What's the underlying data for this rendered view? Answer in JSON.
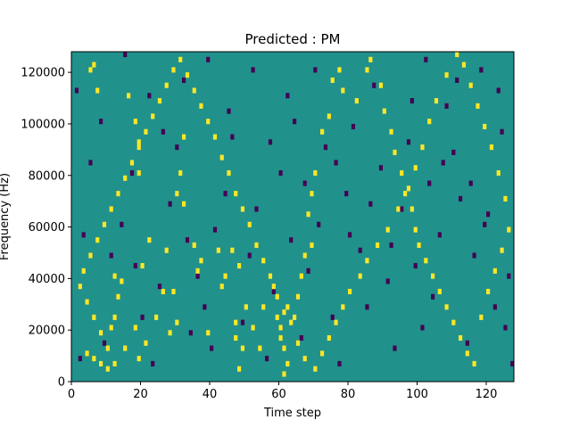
{
  "chart_data": {
    "type": "heatmap",
    "title": "Predicted : PM",
    "xlabel": "Time step",
    "ylabel": "Frequency (Hz)",
    "xlim": [
      0,
      128
    ],
    "ylim": [
      0,
      128000
    ],
    "x_ticks": [
      0,
      20,
      40,
      60,
      80,
      100,
      120
    ],
    "y_ticks": [
      0,
      20000,
      40000,
      60000,
      80000,
      100000,
      120000
    ],
    "x_tick_labels": [
      "0",
      "20",
      "40",
      "60",
      "80",
      "100",
      "120"
    ],
    "y_tick_labels": [
      "0",
      "20000",
      "40000",
      "60000",
      "80000",
      "100000",
      "120000"
    ],
    "n_time_steps": 128,
    "n_freq_bins": 64,
    "freq_bin_hz": 2000,
    "colormap": "viridis",
    "value_levels": [
      -1,
      0,
      1
    ],
    "level_colors": {
      "-1": "#440154",
      "0": "#21918c",
      "1": "#fde725"
    },
    "background_value": 0,
    "grid": false,
    "colorbar": false,
    "positive_cells": [
      [
        4,
        5
      ],
      [
        5,
        60
      ],
      [
        6,
        61
      ],
      [
        7,
        56
      ],
      [
        6,
        4
      ],
      [
        8,
        3
      ],
      [
        10,
        2
      ],
      [
        12,
        20
      ],
      [
        14,
        19
      ],
      [
        13,
        16
      ],
      [
        12,
        12
      ],
      [
        11,
        10
      ],
      [
        15,
        6
      ],
      [
        16,
        55
      ],
      [
        18,
        50
      ],
      [
        19,
        46
      ],
      [
        19,
        40
      ],
      [
        18,
        10
      ],
      [
        19,
        4
      ],
      [
        21,
        7
      ],
      [
        20,
        22
      ],
      [
        24,
        12
      ],
      [
        22,
        27
      ],
      [
        26,
        17
      ],
      [
        28,
        9
      ],
      [
        30,
        11
      ],
      [
        29,
        17
      ],
      [
        27,
        25
      ],
      [
        30,
        36
      ],
      [
        32,
        34
      ],
      [
        31,
        40
      ],
      [
        32,
        47
      ],
      [
        35,
        26
      ],
      [
        37,
        23
      ],
      [
        36,
        21
      ],
      [
        39,
        9
      ],
      [
        43,
        18
      ],
      [
        42,
        25
      ],
      [
        44,
        20
      ],
      [
        46,
        25
      ],
      [
        47,
        11
      ],
      [
        48,
        22
      ],
      [
        47,
        8
      ],
      [
        49,
        6
      ],
      [
        48,
        2
      ],
      [
        50,
        14
      ],
      [
        52,
        10
      ],
      [
        54,
        6
      ],
      [
        55,
        14
      ],
      [
        58,
        18
      ],
      [
        59,
        12
      ],
      [
        60,
        10
      ],
      [
        60,
        8
      ],
      [
        61,
        6
      ],
      [
        62,
        3
      ],
      [
        61,
        1
      ],
      [
        62,
        14
      ],
      [
        64,
        12
      ],
      [
        65,
        16
      ],
      [
        66,
        20
      ],
      [
        67,
        24
      ],
      [
        69,
        26
      ],
      [
        68,
        32
      ],
      [
        69,
        36
      ],
      [
        70,
        40
      ],
      [
        72,
        48
      ],
      [
        74,
        51
      ],
      [
        75,
        58
      ],
      [
        77,
        60
      ],
      [
        78,
        56
      ],
      [
        82,
        54
      ],
      [
        85,
        60
      ],
      [
        86,
        62
      ],
      [
        89,
        57
      ],
      [
        90,
        52
      ],
      [
        92,
        48
      ],
      [
        93,
        44
      ],
      [
        95,
        40
      ],
      [
        96,
        36
      ],
      [
        98,
        33
      ],
      [
        99,
        29
      ],
      [
        100,
        26
      ],
      [
        102,
        23
      ],
      [
        104,
        20
      ],
      [
        106,
        17
      ],
      [
        108,
        14
      ],
      [
        110,
        11
      ],
      [
        112,
        8
      ],
      [
        114,
        5
      ],
      [
        116,
        3
      ],
      [
        118,
        12
      ],
      [
        120,
        17
      ],
      [
        122,
        21
      ],
      [
        124,
        25
      ],
      [
        126,
        29
      ],
      [
        125,
        35
      ],
      [
        123,
        40
      ],
      [
        121,
        45
      ],
      [
        119,
        49
      ],
      [
        117,
        53
      ],
      [
        115,
        57
      ],
      [
        113,
        61
      ],
      [
        111,
        63
      ],
      [
        108,
        59
      ],
      [
        105,
        54
      ],
      [
        103,
        50
      ],
      [
        101,
        45
      ],
      [
        99,
        41
      ],
      [
        97,
        37
      ],
      [
        94,
        33
      ],
      [
        91,
        29
      ],
      [
        88,
        26
      ],
      [
        85,
        23
      ],
      [
        83,
        20
      ],
      [
        80,
        17
      ],
      [
        78,
        14
      ],
      [
        76,
        11
      ],
      [
        74,
        8
      ],
      [
        72,
        5
      ],
      [
        70,
        2
      ],
      [
        67,
        4
      ],
      [
        65,
        7
      ],
      [
        63,
        11
      ],
      [
        61,
        13
      ],
      [
        59,
        16
      ],
      [
        57,
        20
      ],
      [
        55,
        23
      ],
      [
        53,
        26
      ],
      [
        51,
        30
      ],
      [
        49,
        33
      ],
      [
        47,
        36
      ],
      [
        45,
        40
      ],
      [
        43,
        43
      ],
      [
        41,
        47
      ],
      [
        39,
        50
      ],
      [
        37,
        53
      ],
      [
        35,
        56
      ],
      [
        33,
        59
      ],
      [
        31,
        62
      ],
      [
        29,
        60
      ],
      [
        27,
        57
      ],
      [
        25,
        54
      ],
      [
        23,
        51
      ],
      [
        21,
        48
      ],
      [
        19,
        45
      ],
      [
        17,
        42
      ],
      [
        15,
        39
      ],
      [
        13,
        36
      ],
      [
        11,
        33
      ],
      [
        9,
        30
      ],
      [
        7,
        27
      ],
      [
        5,
        24
      ],
      [
        3,
        21
      ],
      [
        2,
        18
      ],
      [
        4,
        15
      ],
      [
        6,
        12
      ],
      [
        8,
        9
      ],
      [
        10,
        6
      ],
      [
        12,
        3
      ]
    ],
    "negative_cells": [
      [
        2,
        4
      ],
      [
        3,
        28
      ],
      [
        5,
        42
      ],
      [
        9,
        7
      ],
      [
        11,
        24
      ],
      [
        14,
        30
      ],
      [
        17,
        40
      ],
      [
        18,
        22
      ],
      [
        20,
        12
      ],
      [
        23,
        3
      ],
      [
        25,
        18
      ],
      [
        28,
        34
      ],
      [
        30,
        45
      ],
      [
        33,
        27
      ],
      [
        34,
        9
      ],
      [
        36,
        20
      ],
      [
        38,
        14
      ],
      [
        40,
        6
      ],
      [
        41,
        29
      ],
      [
        44,
        36
      ],
      [
        46,
        47
      ],
      [
        49,
        11
      ],
      [
        51,
        24
      ],
      [
        53,
        33
      ],
      [
        56,
        4
      ],
      [
        58,
        17
      ],
      [
        60,
        40
      ],
      [
        63,
        27
      ],
      [
        64,
        50
      ],
      [
        66,
        8
      ],
      [
        68,
        21
      ],
      [
        71,
        30
      ],
      [
        73,
        45
      ],
      [
        75,
        12
      ],
      [
        77,
        3
      ],
      [
        79,
        36
      ],
      [
        81,
        49
      ],
      [
        83,
        25
      ],
      [
        85,
        14
      ],
      [
        87,
        57
      ],
      [
        89,
        41
      ],
      [
        91,
        19
      ],
      [
        93,
        6
      ],
      [
        95,
        33
      ],
      [
        97,
        46
      ],
      [
        99,
        22
      ],
      [
        101,
        10
      ],
      [
        103,
        38
      ],
      [
        104,
        16
      ],
      [
        106,
        28
      ],
      [
        108,
        53
      ],
      [
        110,
        44
      ],
      [
        112,
        35
      ],
      [
        114,
        7
      ],
      [
        116,
        24
      ],
      [
        118,
        60
      ],
      [
        120,
        32
      ],
      [
        122,
        14
      ],
      [
        124,
        48
      ],
      [
        126,
        20
      ],
      [
        127,
        3
      ],
      [
        1,
        56
      ],
      [
        8,
        50
      ],
      [
        15,
        63
      ],
      [
        22,
        55
      ],
      [
        26,
        48
      ],
      [
        32,
        58
      ],
      [
        39,
        62
      ],
      [
        45,
        52
      ],
      [
        52,
        60
      ],
      [
        57,
        46
      ],
      [
        62,
        55
      ],
      [
        67,
        38
      ],
      [
        70,
        60
      ],
      [
        76,
        42
      ],
      [
        80,
        28
      ],
      [
        86,
        34
      ],
      [
        92,
        26
      ],
      [
        98,
        54
      ],
      [
        102,
        62
      ],
      [
        107,
        42
      ],
      [
        111,
        58
      ],
      [
        115,
        38
      ],
      [
        119,
        30
      ],
      [
        123,
        56
      ],
      [
        125,
        10
      ]
    ]
  }
}
